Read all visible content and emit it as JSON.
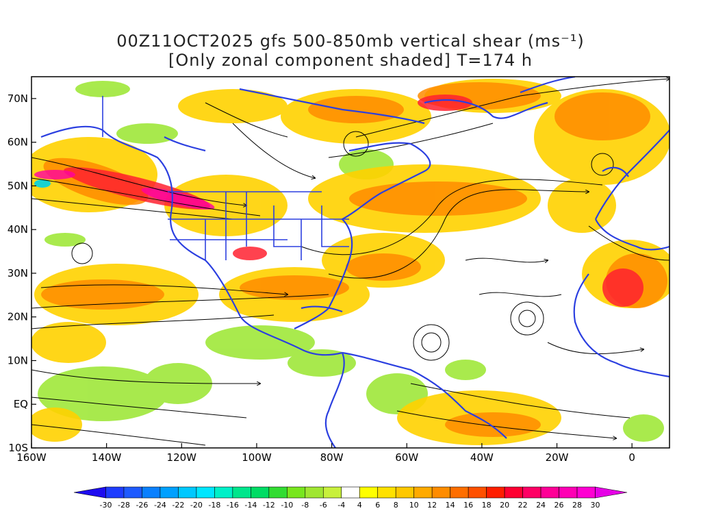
{
  "title": {
    "line1": "00Z11OCT2025 gfs 500-850mb vertical shear (ms⁻¹)",
    "line2": "[Only zonal component shaded] T=174 h"
  },
  "map": {
    "lat_labels": [
      "70N",
      "60N",
      "50N",
      "40N",
      "30N",
      "20N",
      "10N",
      "EQ",
      "10S"
    ],
    "lat_values": [
      70,
      60,
      50,
      40,
      30,
      20,
      10,
      0,
      -10
    ],
    "lon_labels": [
      "160W",
      "140W",
      "120W",
      "100W",
      "80W",
      "60W",
      "40W",
      "20W",
      "0"
    ],
    "lon_values": [
      -160,
      -140,
      -120,
      -100,
      -80,
      -60,
      -40,
      -20,
      0
    ],
    "lon_range": [
      -160,
      10
    ],
    "lat_range": [
      -10,
      75
    ],
    "coastline_color": "#2b3fe0",
    "streamline_color": "#000000"
  },
  "colorbar": {
    "labels": [
      "-30",
      "-28",
      "-26",
      "-24",
      "-22",
      "-20",
      "-18",
      "-16",
      "-14",
      "-12",
      "-10",
      "-8",
      "-6",
      "-4",
      "4",
      "6",
      "8",
      "10",
      "12",
      "14",
      "16",
      "18",
      "20",
      "22",
      "24",
      "26",
      "28",
      "30"
    ],
    "colors": [
      "#1e0cf0",
      "#1e3cff",
      "#1e5aff",
      "#0a80ff",
      "#00a0ff",
      "#00c8ff",
      "#00e6ff",
      "#00f0c8",
      "#00e68c",
      "#00dc64",
      "#32dc32",
      "#78e61e",
      "#a0e632",
      "#c8f03c",
      "#ffffff",
      "#ffff00",
      "#ffe100",
      "#ffc800",
      "#ffaa00",
      "#ff8c00",
      "#ff6e00",
      "#ff5000",
      "#ff1e00",
      "#ff0032",
      "#ff0064",
      "#ff0096",
      "#ff00b4",
      "#ff00d2",
      "#e600e6"
    ]
  }
}
